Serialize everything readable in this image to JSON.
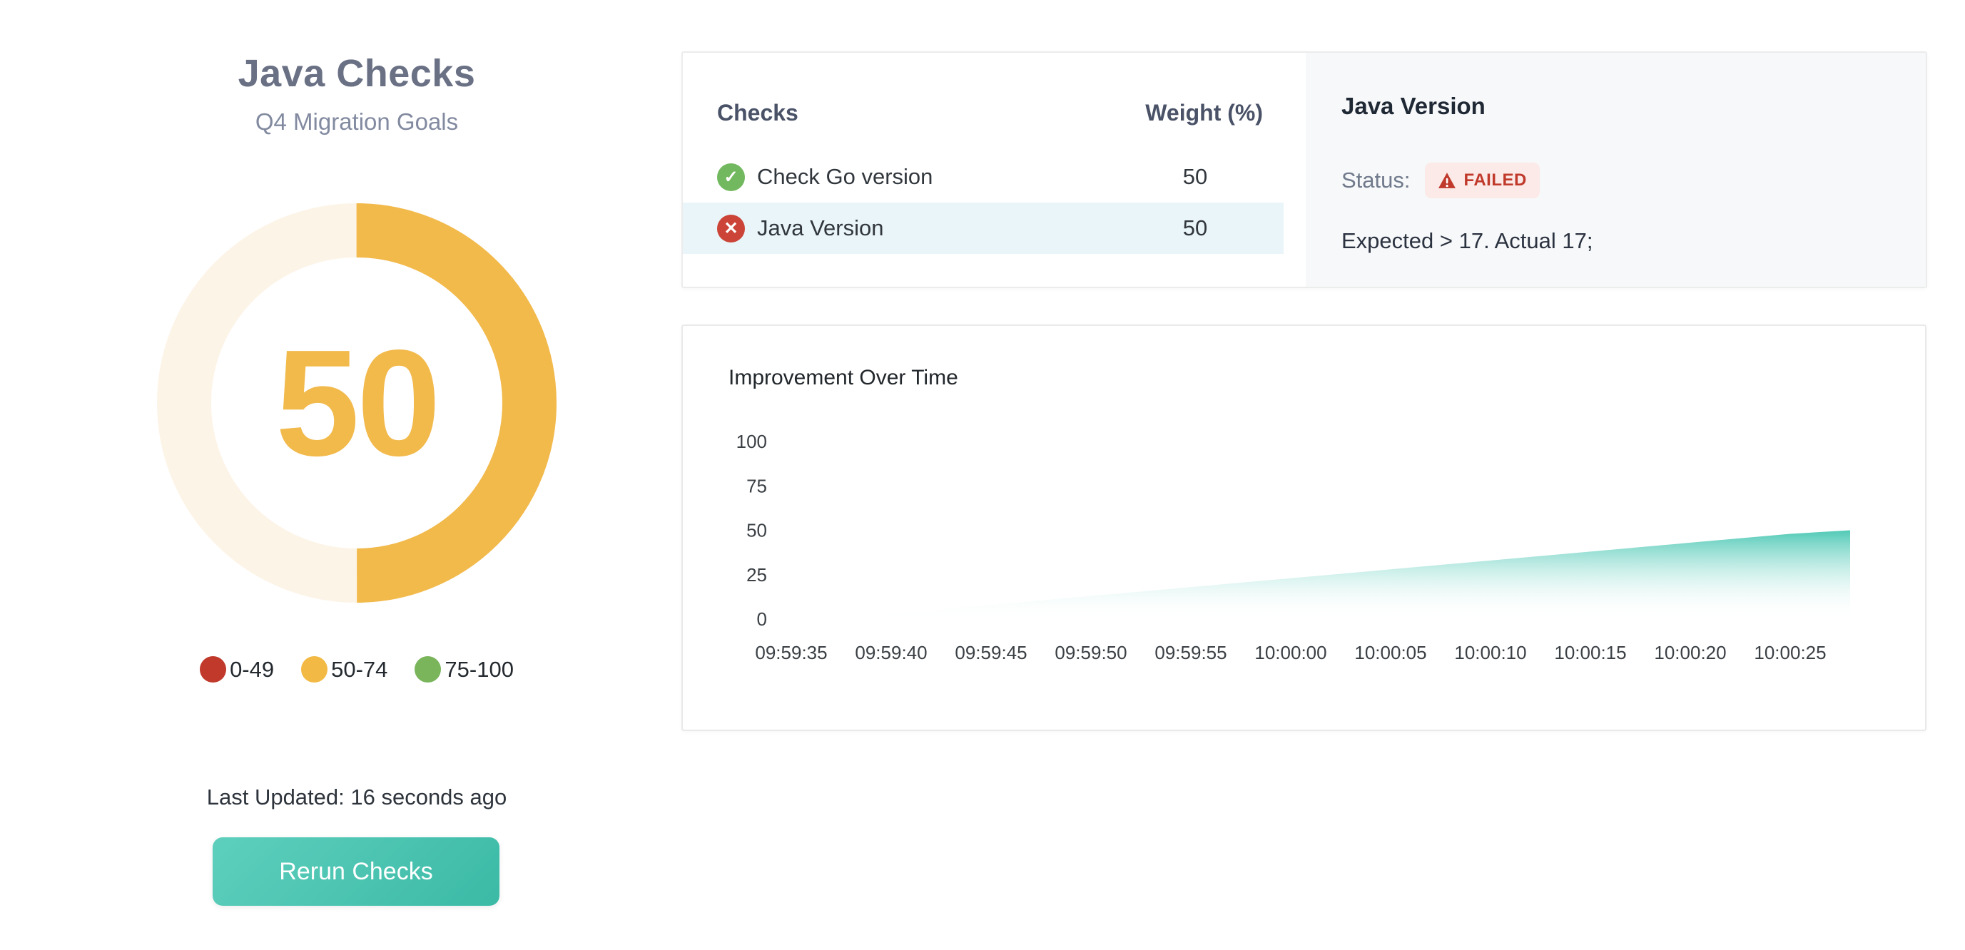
{
  "left_panel": {
    "title": "Java Checks",
    "subtitle": "Q4 Migration Goals",
    "gauge": {
      "value": 50,
      "max": 100,
      "arc_color": "#f2b94b",
      "track_color": "#fdf4e8"
    },
    "legend": {
      "items": [
        {
          "label": "0-49",
          "color": "#c0392b"
        },
        {
          "label": "50-74",
          "color": "#f2b944"
        },
        {
          "label": "75-100",
          "color": "#7ab55c"
        }
      ]
    },
    "last_updated": "Last Updated: 16 seconds ago",
    "rerun_button_label": "Rerun Checks"
  },
  "checks_panel": {
    "columns": {
      "checks": "Checks",
      "weight": "Weight (%)"
    },
    "rows": [
      {
        "name": "Check Go version",
        "weight": "50",
        "status": "passed",
        "selected": false
      },
      {
        "name": "Java Version",
        "weight": "50",
        "status": "failed",
        "selected": true
      }
    ]
  },
  "detail_panel": {
    "title": "Java Version",
    "status_label": "Status:",
    "status_badge": "FAILED",
    "message": "Expected > 17. Actual 17;"
  },
  "chart_data": {
    "type": "area",
    "title": "Improvement Over Time",
    "xlabel": "",
    "ylabel": "",
    "ylim": [
      0,
      100
    ],
    "yticks": [
      0,
      25,
      50,
      75,
      100
    ],
    "x": [
      "09:59:35",
      "09:59:40",
      "09:59:45",
      "09:59:50",
      "09:59:55",
      "10:00:00",
      "10:00:05",
      "10:00:10",
      "10:00:15",
      "10:00:20",
      "10:00:25"
    ],
    "series": [
      {
        "name": "Improvement",
        "points": [
          [
            "09:59:37",
            0
          ],
          [
            "09:59:40",
            3
          ],
          [
            "09:59:45",
            8
          ],
          [
            "09:59:50",
            13
          ],
          [
            "09:59:55",
            18
          ],
          [
            "10:00:00",
            23
          ],
          [
            "10:00:05",
            28
          ],
          [
            "10:00:10",
            33
          ],
          [
            "10:00:15",
            38
          ],
          [
            "10:00:20",
            43
          ],
          [
            "10:00:25",
            48
          ],
          [
            "10:00:28",
            50
          ]
        ]
      }
    ],
    "grid": false,
    "legend_position": "none",
    "area_color": "#3ec3ae"
  },
  "colors": {
    "pass": "#72b85e",
    "fail": "#cb4437",
    "selected_row_bg": "#e9f5f9",
    "badge_bg": "#fbeae7",
    "badge_text": "#c0392b",
    "button_gradient_start": "#5ecfbd",
    "button_gradient_end": "#3bbaa6"
  }
}
